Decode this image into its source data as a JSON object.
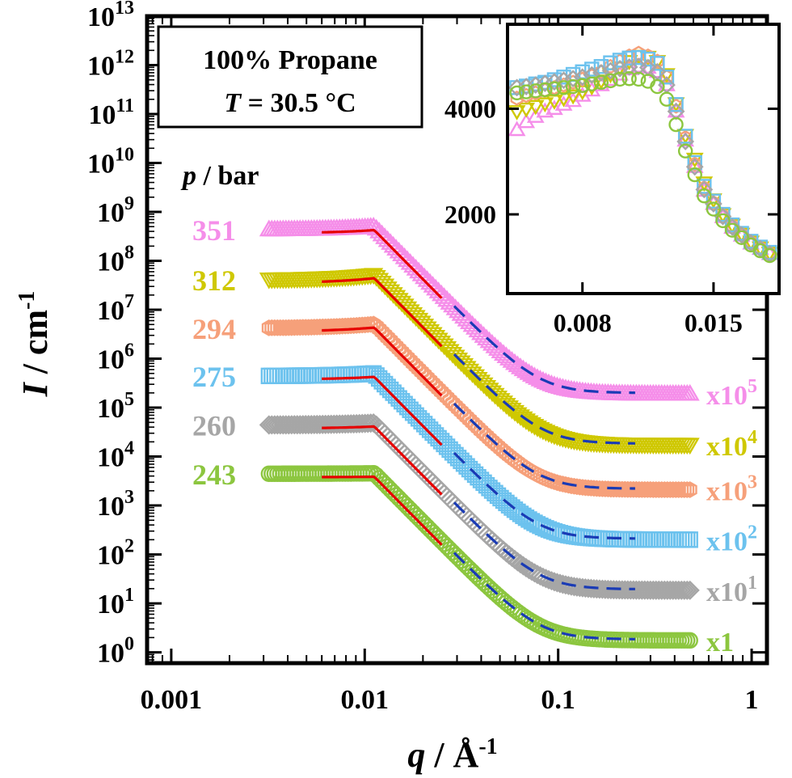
{
  "chart_data": [
    {
      "type": "scatter",
      "role": "main",
      "ylabel_main": "I",
      "ylabel_unit": " / cm",
      "ylabel_unit_exp": "-1",
      "xlabel_main": "q",
      "xlabel_unit": " / Å",
      "xlabel_unit_exp": "-1",
      "x_scale": "log",
      "y_scale": "log",
      "xlim": [
        0.00075,
        1.2
      ],
      "ylim": [
        0.6,
        10000000000000
      ],
      "x_ticks": [
        {
          "value": 0.001,
          "label": "0.001"
        },
        {
          "value": 0.01,
          "label": "0.01"
        },
        {
          "value": 0.1,
          "label": "0.1"
        },
        {
          "value": 1,
          "label": "1"
        }
      ],
      "y_ticks": [
        {
          "value": 1,
          "base": "10",
          "exp": "0"
        },
        {
          "value": 10,
          "base": "10",
          "exp": "1"
        },
        {
          "value": 100,
          "base": "10",
          "exp": "2"
        },
        {
          "value": 1000,
          "base": "10",
          "exp": "3"
        },
        {
          "value": 10000,
          "base": "10",
          "exp": "4"
        },
        {
          "value": 100000,
          "base": "10",
          "exp": "5"
        },
        {
          "value": 1000000,
          "base": "10",
          "exp": "6"
        },
        {
          "value": 10000000,
          "base": "10",
          "exp": "7"
        },
        {
          "value": 100000000,
          "base": "10",
          "exp": "8"
        },
        {
          "value": 1000000000,
          "base": "10",
          "exp": "9"
        },
        {
          "value": 10000000000,
          "base": "10",
          "exp": "10"
        },
        {
          "value": 100000000000,
          "base": "10",
          "exp": "11"
        },
        {
          "value": 1000000000000,
          "base": "10",
          "exp": "12"
        },
        {
          "value": 10000000000000,
          "base": "10",
          "exp": "13"
        }
      ],
      "annotation_box": {
        "line1": "100% Propane",
        "line2_italic": "T",
        "line2_rest": " = 30.5 °C"
      },
      "legend_title_italic": "p",
      "legend_title_rest": " / bar",
      "series": [
        {
          "name": "351",
          "color": "#f58ee9",
          "marker": "triangle-up",
          "factor": 100000,
          "factor_label": "x10",
          "factor_exp": "5",
          "plateau": 4300,
          "peak": 5000,
          "high_q": 1.9
        },
        {
          "name": "312",
          "color": "#cfc800",
          "marker": "triangle-down",
          "factor": 10000,
          "factor_label": "x10",
          "factor_exp": "4",
          "plateau": 4100,
          "peak": 5200,
          "high_q": 1.75
        },
        {
          "name": "294",
          "color": "#f6a07a",
          "marker": "hexagon",
          "factor": 1000,
          "factor_label": "x10",
          "factor_exp": "3",
          "plateau": 4200,
          "peak": 5100,
          "high_q": 2.1
        },
        {
          "name": "275",
          "color": "#6cc2ee",
          "marker": "square",
          "factor": 100,
          "factor_label": "x10",
          "factor_exp": "2",
          "plateau": 4400,
          "peak": 5000,
          "high_q": 2.0
        },
        {
          "name": "260",
          "color": "#a6a6a6",
          "marker": "diamond",
          "factor": 10,
          "factor_label": "x10",
          "factor_exp": "1",
          "plateau": 4400,
          "peak": 4850,
          "high_q": 1.85
        },
        {
          "name": "243",
          "color": "#8cc63f",
          "marker": "circle",
          "factor": 1,
          "factor_label": "x1",
          "factor_exp": "",
          "plateau": 4450,
          "peak": 4550,
          "high_q": 1.75
        }
      ],
      "fit_lines": [
        {
          "name": "low-q fit",
          "color": "#e60000",
          "style": "solid",
          "x_range": [
            0.006,
            0.025
          ]
        },
        {
          "name": "high-q fit",
          "color": "#1a3bb5",
          "style": "dashed",
          "x_range": [
            0.029,
            0.25
          ]
        }
      ]
    },
    {
      "type": "scatter",
      "role": "inset",
      "x_scale": "linear",
      "y_scale": "linear",
      "xlim": [
        0.004,
        0.0185
      ],
      "ylim": [
        500,
        5600
      ],
      "x_ticks": [
        0.008,
        0.015
      ],
      "x_tick_labels": [
        "0.008",
        "0.015"
      ],
      "y_ticks": [
        2000,
        4000
      ],
      "y_tick_labels": [
        "2000",
        "4000"
      ],
      "x": [
        0.0045,
        0.005,
        0.0055,
        0.006,
        0.0065,
        0.007,
        0.0075,
        0.008,
        0.0085,
        0.009,
        0.0095,
        0.01,
        0.0105,
        0.011,
        0.0115,
        0.012,
        0.0125,
        0.013,
        0.0135,
        0.014,
        0.0145,
        0.015,
        0.0155,
        0.016,
        0.0165,
        0.017,
        0.0175,
        0.018
      ],
      "series": [
        {
          "name": "351",
          "y": [
            3600,
            3750,
            3850,
            3950,
            4000,
            4080,
            4150,
            4250,
            4350,
            4450,
            4550,
            4650,
            4750,
            4800,
            4780,
            4700,
            4450,
            3950,
            3400,
            2900,
            2450,
            2200,
            1950,
            1750,
            1600,
            1450,
            1350,
            1250
          ]
        },
        {
          "name": "312",
          "y": [
            3950,
            4000,
            4050,
            4100,
            4150,
            4200,
            4250,
            4330,
            4420,
            4530,
            4650,
            4780,
            4900,
            5000,
            4980,
            4900,
            4650,
            4100,
            3500,
            3050,
            2600,
            2280,
            2000,
            1800,
            1630,
            1480,
            1370,
            1270
          ]
        },
        {
          "name": "294",
          "y": [
            4200,
            4250,
            4300,
            4350,
            4400,
            4450,
            4500,
            4560,
            4620,
            4700,
            4800,
            4900,
            5000,
            5050,
            5000,
            4900,
            4600,
            4050,
            3450,
            2950,
            2500,
            2220,
            1980,
            1780,
            1620,
            1470,
            1360,
            1260
          ]
        },
        {
          "name": "275",
          "y": [
            4400,
            4430,
            4470,
            4500,
            4550,
            4600,
            4650,
            4700,
            4750,
            4800,
            4870,
            4920,
            4960,
            4970,
            4940,
            4860,
            4600,
            4080,
            3480,
            2980,
            2530,
            2250,
            2000,
            1800,
            1640,
            1490,
            1380,
            1280
          ]
        },
        {
          "name": "260",
          "y": [
            4400,
            4420,
            4450,
            4480,
            4510,
            4540,
            4570,
            4600,
            4640,
            4680,
            4720,
            4760,
            4790,
            4800,
            4780,
            4700,
            4450,
            3950,
            3380,
            2900,
            2470,
            2200,
            1960,
            1760,
            1610,
            1460,
            1350,
            1250
          ]
        },
        {
          "name": "243",
          "y": [
            4300,
            4320,
            4340,
            4360,
            4380,
            4400,
            4420,
            4440,
            4470,
            4500,
            4530,
            4560,
            4570,
            4560,
            4520,
            4420,
            4180,
            3700,
            3200,
            2750,
            2350,
            2100,
            1880,
            1700,
            1560,
            1420,
            1310,
            1220
          ]
        }
      ]
    }
  ]
}
